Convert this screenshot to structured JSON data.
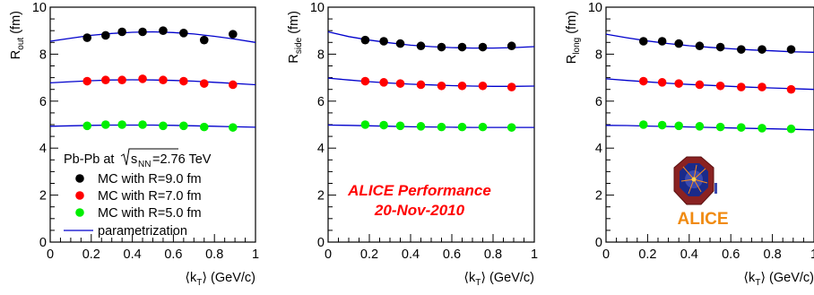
{
  "chart_data": [
    {
      "type": "scatter",
      "panel": "Rout",
      "ylabel": "R",
      "ylabel_sub": "out",
      "ylabel_unit": "(fm)",
      "xlabel_open": "⟨k",
      "xlabel_sub": "T",
      "xlabel_close": "⟩ (GeV/c)",
      "xlim": [
        0,
        1
      ],
      "ylim": [
        0,
        10
      ],
      "x_ticks": [
        "0",
        "0.2",
        "0.4",
        "0.6",
        "0.8",
        "1"
      ],
      "y_ticks": [
        "0",
        "2",
        "4",
        "6",
        "8",
        "10"
      ],
      "series": [
        {
          "name": "MC with R=9.0 fm",
          "color": "#000000",
          "x": [
            0.18,
            0.27,
            0.35,
            0.45,
            0.55,
            0.65,
            0.75,
            0.89
          ],
          "y": [
            8.7,
            8.8,
            8.95,
            8.95,
            9.0,
            8.9,
            8.6,
            8.85
          ]
        },
        {
          "name": "MC with R=7.0 fm",
          "color": "#ff0000",
          "x": [
            0.18,
            0.27,
            0.35,
            0.45,
            0.55,
            0.65,
            0.75,
            0.89
          ],
          "y": [
            6.85,
            6.9,
            6.9,
            6.95,
            6.9,
            6.85,
            6.75,
            6.7
          ]
        },
        {
          "name": "MC with R=5.0 fm",
          "color": "#00ee00",
          "x": [
            0.18,
            0.27,
            0.35,
            0.45,
            0.55,
            0.65,
            0.75,
            0.89
          ],
          "y": [
            4.95,
            5.0,
            5.0,
            5.0,
            4.95,
            4.95,
            4.9,
            4.88
          ]
        }
      ],
      "curves": [
        {
          "color": "#0000cc",
          "x": [
            0,
            0.1,
            0.2,
            0.3,
            0.4,
            0.5,
            0.6,
            0.7,
            0.8,
            0.9,
            1.0
          ],
          "y": [
            8.55,
            8.68,
            8.8,
            8.88,
            8.93,
            8.95,
            8.92,
            8.86,
            8.76,
            8.64,
            8.5
          ]
        },
        {
          "color": "#0000cc",
          "x": [
            0,
            0.1,
            0.2,
            0.3,
            0.4,
            0.5,
            0.6,
            0.7,
            0.8,
            0.9,
            1.0
          ],
          "y": [
            6.78,
            6.83,
            6.87,
            6.9,
            6.91,
            6.9,
            6.88,
            6.85,
            6.8,
            6.75,
            6.7
          ]
        },
        {
          "color": "#0000cc",
          "x": [
            0,
            0.1,
            0.2,
            0.3,
            0.4,
            0.5,
            0.6,
            0.7,
            0.8,
            0.9,
            1.0
          ],
          "y": [
            4.93,
            4.95,
            4.97,
            4.98,
            4.98,
            4.98,
            4.97,
            4.95,
            4.93,
            4.91,
            4.89
          ]
        }
      ]
    },
    {
      "type": "scatter",
      "panel": "Rside",
      "ylabel": "R",
      "ylabel_sub": "side",
      "ylabel_unit": "(fm)",
      "xlabel_open": "⟨k",
      "xlabel_sub": "T",
      "xlabel_close": "⟩ (GeV/c)",
      "xlim": [
        0,
        1
      ],
      "ylim": [
        0,
        10
      ],
      "x_ticks": [
        "0",
        "0.2",
        "0.4",
        "0.6",
        "0.8",
        "1"
      ],
      "y_ticks": [
        "0",
        "2",
        "4",
        "6",
        "8",
        "10"
      ],
      "series": [
        {
          "name": "MC with R=9.0 fm",
          "color": "#000000",
          "x": [
            0.18,
            0.27,
            0.35,
            0.45,
            0.55,
            0.65,
            0.75,
            0.89
          ],
          "y": [
            8.6,
            8.55,
            8.45,
            8.35,
            8.3,
            8.3,
            8.3,
            8.35
          ]
        },
        {
          "name": "MC with R=7.0 fm",
          "color": "#ff0000",
          "x": [
            0.18,
            0.27,
            0.35,
            0.45,
            0.55,
            0.65,
            0.75,
            0.89
          ],
          "y": [
            6.85,
            6.8,
            6.75,
            6.7,
            6.65,
            6.65,
            6.65,
            6.6
          ]
        },
        {
          "name": "MC with R=5.0 fm",
          "color": "#00ee00",
          "x": [
            0.18,
            0.27,
            0.35,
            0.45,
            0.55,
            0.65,
            0.75,
            0.89
          ],
          "y": [
            5.0,
            4.98,
            4.95,
            4.93,
            4.9,
            4.9,
            4.9,
            4.88
          ]
        }
      ],
      "curves": [
        {
          "color": "#0000cc",
          "x": [
            0,
            0.1,
            0.2,
            0.3,
            0.4,
            0.5,
            0.6,
            0.7,
            0.8,
            0.9,
            1.0
          ],
          "y": [
            8.95,
            8.75,
            8.6,
            8.48,
            8.38,
            8.32,
            8.28,
            8.26,
            8.26,
            8.28,
            8.32
          ]
        },
        {
          "color": "#0000cc",
          "x": [
            0,
            0.1,
            0.2,
            0.3,
            0.4,
            0.5,
            0.6,
            0.7,
            0.8,
            0.9,
            1.0
          ],
          "y": [
            6.98,
            6.9,
            6.83,
            6.77,
            6.72,
            6.69,
            6.66,
            6.64,
            6.63,
            6.63,
            6.64
          ]
        },
        {
          "color": "#0000cc",
          "x": [
            0,
            0.1,
            0.2,
            0.3,
            0.4,
            0.5,
            0.6,
            0.7,
            0.8,
            0.9,
            1.0
          ],
          "y": [
            4.98,
            4.97,
            4.95,
            4.93,
            4.91,
            4.9,
            4.89,
            4.88,
            4.88,
            4.88,
            4.88
          ]
        }
      ]
    },
    {
      "type": "scatter",
      "panel": "Rlong",
      "ylabel": "R",
      "ylabel_sub": "long",
      "ylabel_unit": "(fm)",
      "xlabel_open": "⟨k",
      "xlabel_sub": "T",
      "xlabel_close": "⟩ (GeV/c)",
      "xlim": [
        0,
        1
      ],
      "ylim": [
        0,
        10
      ],
      "x_ticks": [
        "0",
        "0.2",
        "0.4",
        "0.6",
        "0.8",
        "1"
      ],
      "y_ticks": [
        "0",
        "2",
        "4",
        "6",
        "8",
        "10"
      ],
      "series": [
        {
          "name": "MC with R=9.0 fm",
          "color": "#000000",
          "x": [
            0.18,
            0.27,
            0.35,
            0.45,
            0.55,
            0.65,
            0.75,
            0.89
          ],
          "y": [
            8.55,
            8.55,
            8.45,
            8.35,
            8.3,
            8.2,
            8.2,
            8.2
          ]
        },
        {
          "name": "MC with R=7.0 fm",
          "color": "#ff0000",
          "x": [
            0.18,
            0.27,
            0.35,
            0.45,
            0.55,
            0.65,
            0.75,
            0.89
          ],
          "y": [
            6.85,
            6.8,
            6.75,
            6.7,
            6.65,
            6.6,
            6.6,
            6.5
          ]
        },
        {
          "name": "MC with R=5.0 fm",
          "color": "#00ee00",
          "x": [
            0.18,
            0.27,
            0.35,
            0.45,
            0.55,
            0.65,
            0.75,
            0.89
          ],
          "y": [
            5.0,
            4.98,
            4.95,
            4.93,
            4.9,
            4.88,
            4.85,
            4.82
          ]
        }
      ],
      "curves": [
        {
          "color": "#0000cc",
          "x": [
            0,
            0.1,
            0.2,
            0.3,
            0.4,
            0.5,
            0.6,
            0.7,
            0.8,
            0.9,
            1.0
          ],
          "y": [
            8.85,
            8.7,
            8.56,
            8.45,
            8.36,
            8.29,
            8.23,
            8.18,
            8.14,
            8.1,
            8.08
          ]
        },
        {
          "color": "#0000cc",
          "x": [
            0,
            0.1,
            0.2,
            0.3,
            0.4,
            0.5,
            0.6,
            0.7,
            0.8,
            0.9,
            1.0
          ],
          "y": [
            6.95,
            6.88,
            6.82,
            6.76,
            6.71,
            6.67,
            6.63,
            6.59,
            6.56,
            6.53,
            6.5
          ]
        },
        {
          "color": "#0000cc",
          "x": [
            0,
            0.1,
            0.2,
            0.3,
            0.4,
            0.5,
            0.6,
            0.7,
            0.8,
            0.9,
            1.0
          ],
          "y": [
            4.97,
            4.96,
            4.94,
            4.92,
            4.9,
            4.88,
            4.86,
            4.84,
            4.82,
            4.8,
            4.78
          ]
        }
      ]
    }
  ],
  "legend": {
    "header_prefix": "Pb-Pb at ",
    "header_sqrt_s": "s",
    "header_sqrt_sub": "NN",
    "header_suffix": "=2.76 TeV",
    "entries": [
      {
        "label": "MC with R=9.0 fm",
        "color": "#000000"
      },
      {
        "label": "MC with R=7.0 fm",
        "color": "#ff0000"
      },
      {
        "label": "MC with R=5.0 fm",
        "color": "#00ee00"
      }
    ],
    "line_label": "parametrization",
    "line_color": "#0000cc"
  },
  "performance": {
    "line1": "ALICE Performance",
    "line2": "20-Nov-2010",
    "color": "#ff0000"
  },
  "logo": {
    "text": "ALICE",
    "color": "#f08a10"
  }
}
